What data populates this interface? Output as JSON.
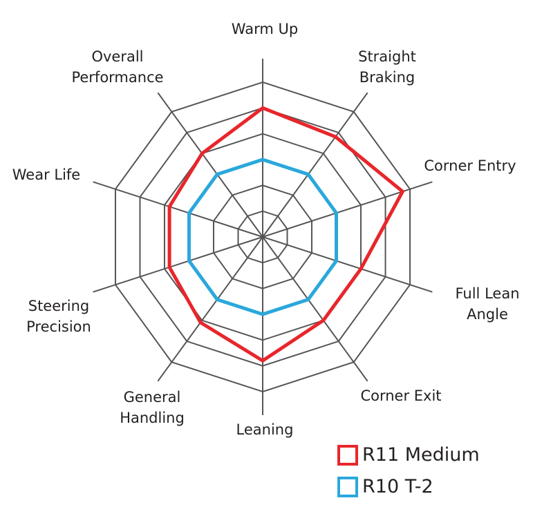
{
  "chart_data": {
    "type": "radar",
    "categories": [
      "Warm Up",
      "Straight Braking",
      "Corner Entry",
      "Full Lean Angle",
      "Corner Exit",
      "Leaning",
      "General Handling",
      "Steering Precision",
      "Wear Life",
      "Overall Performance"
    ],
    "series": [
      {
        "name": "R11 Medium",
        "color": "#e8262b",
        "values": [
          5,
          4.8,
          5.7,
          4,
          4,
          4.8,
          4.1,
          3.8,
          3.8,
          4
        ]
      },
      {
        "name": "R10 T-2",
        "color": "#2aa8dc",
        "values": [
          3,
          3,
          3,
          3,
          3,
          3,
          3,
          3,
          3,
          3
        ]
      }
    ],
    "rlim": [
      0,
      6
    ],
    "rticks": [
      1,
      2,
      3,
      4,
      5,
      6
    ],
    "grid": true
  }
}
